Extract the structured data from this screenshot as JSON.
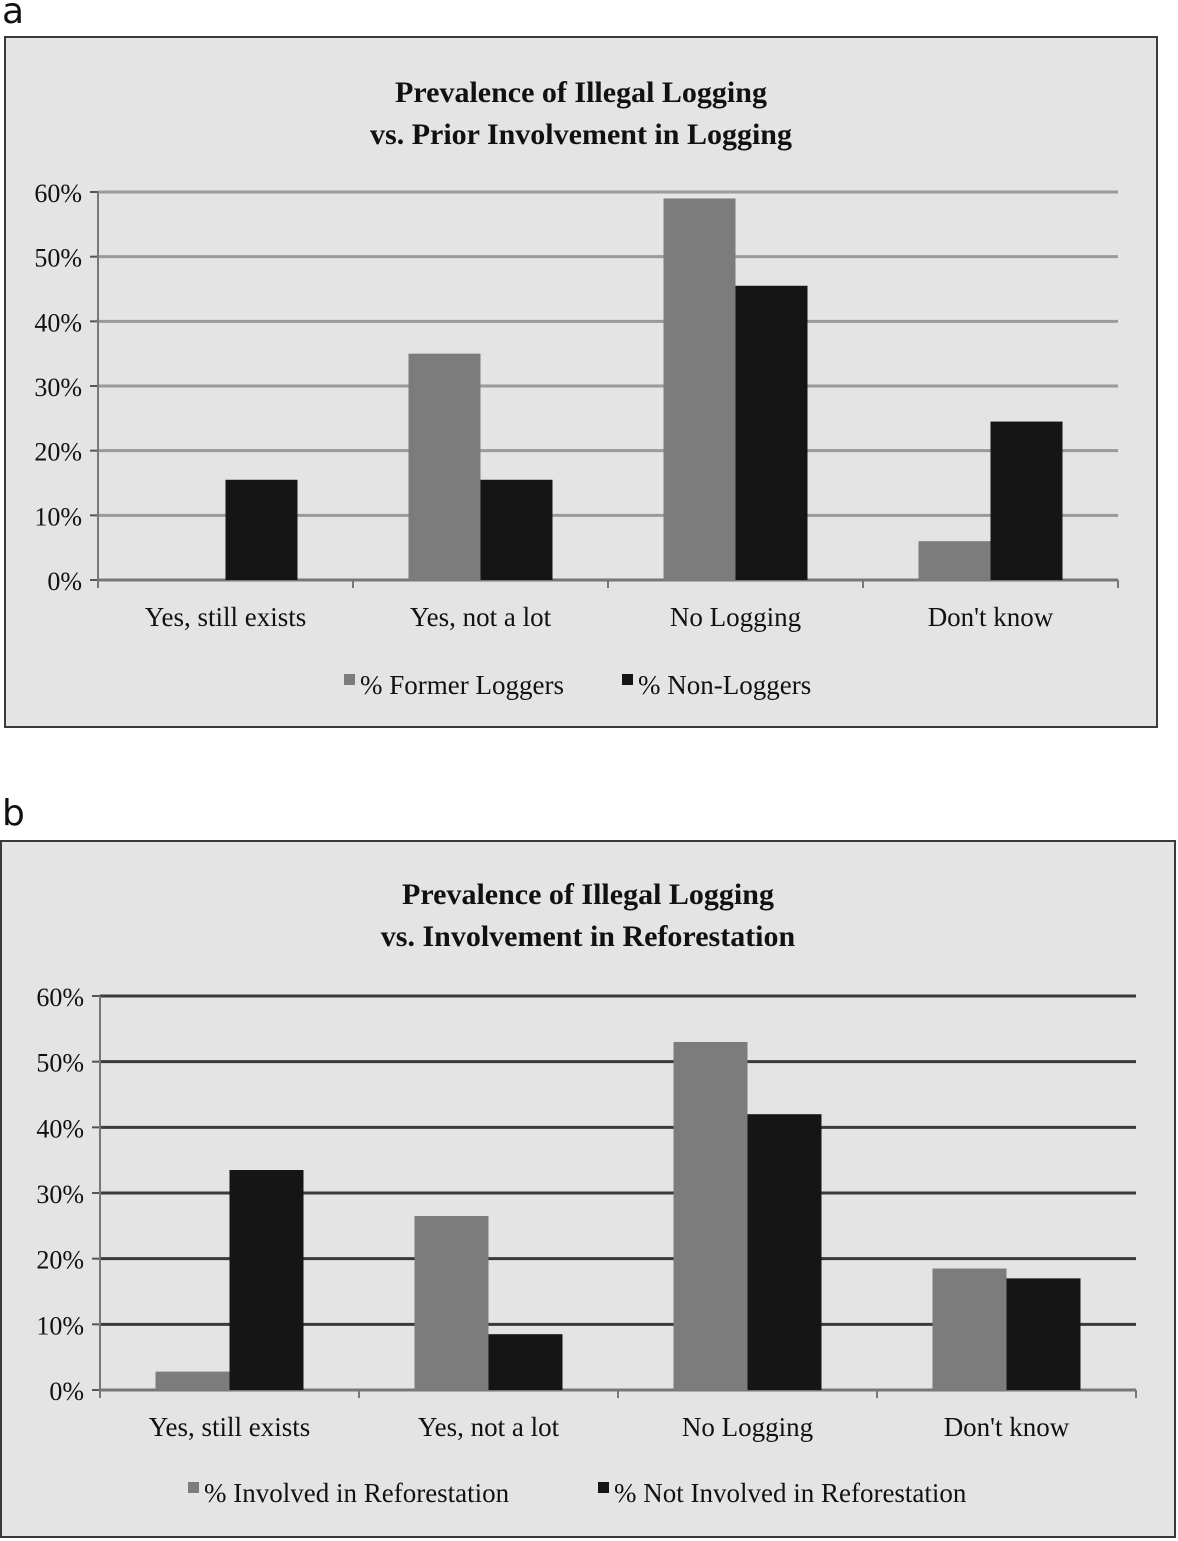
{
  "panels": [
    {
      "letter": "a",
      "title_lines": [
        "Prevalence of Illegal Logging",
        "vs. Prior Involvement in Logging"
      ]
    },
    {
      "letter": "b",
      "title_lines": [
        "Prevalence of Illegal Logging",
        "vs. Involvement in Reforestation"
      ]
    }
  ],
  "chart_data": [
    {
      "type": "bar",
      "title": "Prevalence of Illegal Logging vs. Prior Involvement in Logging",
      "xlabel": "",
      "ylabel": "",
      "ylim": [
        0,
        60
      ],
      "yticks": [
        "0%",
        "10%",
        "20%",
        "30%",
        "40%",
        "50%",
        "60%"
      ],
      "categories": [
        "Yes, still exists",
        "Yes, not a lot",
        "No Logging",
        "Don't know"
      ],
      "series": [
        {
          "name": "% Former Loggers",
          "color": "#7c7c7c",
          "values": [
            0,
            35,
            59,
            6
          ]
        },
        {
          "name": "% Non-Loggers",
          "color": "#151515",
          "values": [
            15.5,
            15.5,
            45.5,
            24.5
          ]
        }
      ],
      "grid": true,
      "legend": "bottom"
    },
    {
      "type": "bar",
      "title": "Prevalence of Illegal Logging vs. Involvement in Reforestation",
      "xlabel": "",
      "ylabel": "",
      "ylim": [
        0,
        60
      ],
      "yticks": [
        "0%",
        "10%",
        "20%",
        "30%",
        "40%",
        "50%",
        "60%"
      ],
      "categories": [
        "Yes, still exists",
        "Yes, not a lot",
        "No Logging",
        "Don't know"
      ],
      "series": [
        {
          "name": "% Involved in Reforestation",
          "color": "#7c7c7c",
          "values": [
            2.8,
            26.5,
            53,
            18.5
          ]
        },
        {
          "name": "% Not Involved in Reforestation",
          "color": "#151515",
          "values": [
            33.5,
            8.5,
            42,
            17
          ]
        }
      ],
      "grid": true,
      "legend": "bottom"
    }
  ]
}
